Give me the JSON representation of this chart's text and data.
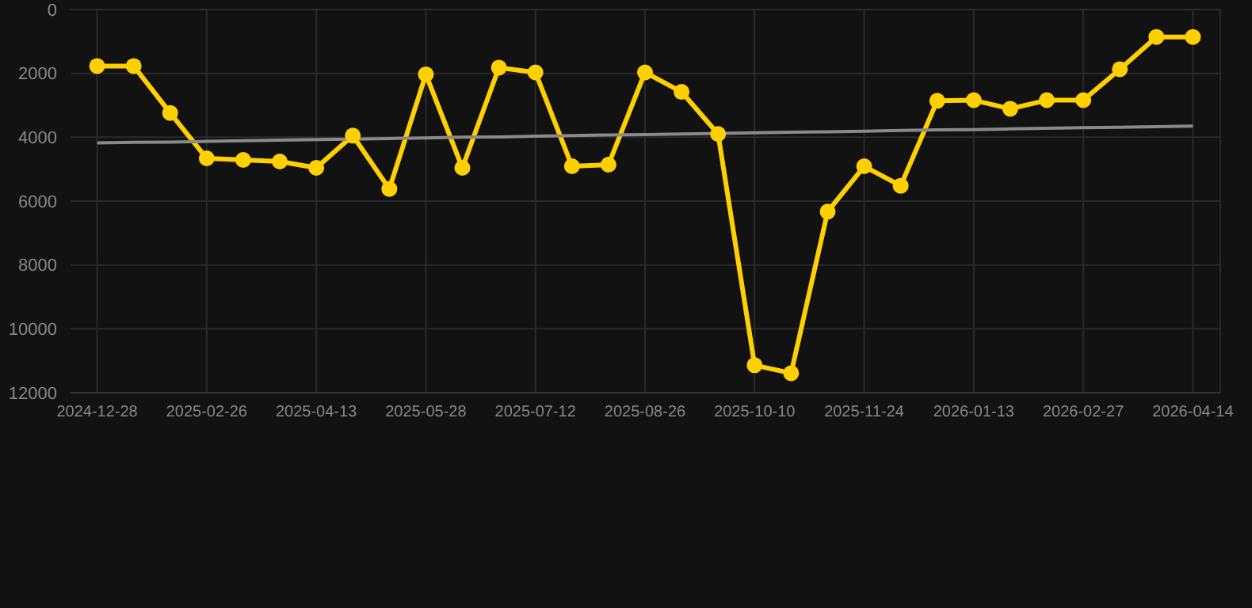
{
  "chart_data": {
    "type": "line",
    "categories": [
      "2024-12-28",
      null,
      null,
      "2025-02-26",
      null,
      null,
      "2025-04-13",
      null,
      null,
      "2025-05-28",
      null,
      null,
      "2025-07-12",
      null,
      null,
      "2025-08-26",
      null,
      null,
      "2025-10-10",
      null,
      null,
      "2025-11-24",
      null,
      null,
      "2026-01-13",
      null,
      null,
      "2026-02-27",
      null,
      null,
      "2026-04-14"
    ],
    "series": [
      {
        "color": "#ffd000",
        "values": [
          1770,
          1770,
          3240,
          4660,
          4710,
          4760,
          4960,
          3950,
          5620,
          2030,
          4960,
          1820,
          1970,
          4910,
          4860,
          1970,
          2580,
          3900,
          11140,
          11390,
          6330,
          4910,
          5520,
          2860,
          2840,
          3110,
          2840,
          2840,
          1870,
          860,
          860
        ]
      },
      {
        "type": "line",
        "color": "#8a8a8a",
        "marker": "none",
        "values": [
          4180,
          4160,
          4150,
          4130,
          4110,
          4090,
          4070,
          4060,
          4040,
          4020,
          4000,
          3990,
          3970,
          3950,
          3930,
          3920,
          3900,
          3880,
          3860,
          3840,
          3830,
          3810,
          3790,
          3770,
          3760,
          3740,
          3720,
          3700,
          3690,
          3670,
          3650
        ]
      }
    ],
    "ylim": [
      12000,
      0
    ],
    "yticks": [
      0,
      2000,
      4000,
      6000,
      8000,
      10000,
      12000
    ],
    "grid": true,
    "legend": false,
    "marker": "circle"
  }
}
